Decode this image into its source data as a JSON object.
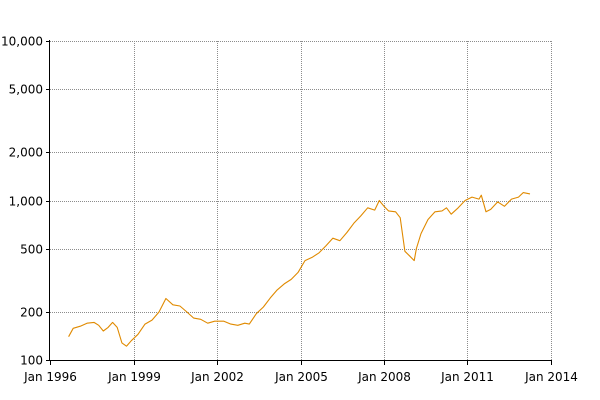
{
  "chart_data": {
    "type": "line",
    "title": "",
    "xlabel": "",
    "ylabel": "",
    "y_scale": "log",
    "grid": true,
    "legend": "none",
    "xlim": [
      "1996-01-01",
      "2014-01-01"
    ],
    "ylim": [
      100,
      10000
    ],
    "x_ticks": [
      {
        "value": "1996-01-01",
        "label": "Jan 1996"
      },
      {
        "value": "1999-01-01",
        "label": "Jan 1999"
      },
      {
        "value": "2002-01-01",
        "label": "Jan 2002"
      },
      {
        "value": "2005-01-01",
        "label": "Jan 2005"
      },
      {
        "value": "2008-01-01",
        "label": "Jan 2008"
      },
      {
        "value": "2011-01-01",
        "label": "Jan 2011"
      },
      {
        "value": "2014-01-01",
        "label": "Jan 2014"
      }
    ],
    "y_ticks": [
      {
        "value": 100,
        "label": "100"
      },
      {
        "value": 200,
        "label": "200"
      },
      {
        "value": 500,
        "label": "500"
      },
      {
        "value": 1000,
        "label": "1,000"
      },
      {
        "value": 2000,
        "label": "2,000"
      },
      {
        "value": 5000,
        "label": "5,000"
      },
      {
        "value": 10000,
        "label": "10,000"
      }
    ],
    "series": [
      {
        "color": "#e08a00",
        "points": [
          [
            "1996-09-01",
            140
          ],
          [
            "1996-11-01",
            158
          ],
          [
            "1997-02-01",
            163
          ],
          [
            "1997-05-01",
            170
          ],
          [
            "1997-08-01",
            172
          ],
          [
            "1997-10-01",
            165
          ],
          [
            "1997-12-01",
            152
          ],
          [
            "1998-02-01",
            160
          ],
          [
            "1998-04-01",
            172
          ],
          [
            "1998-06-01",
            160
          ],
          [
            "1998-08-01",
            128
          ],
          [
            "1998-10-01",
            122
          ],
          [
            "1998-12-01",
            132
          ],
          [
            "1999-03-01",
            145
          ],
          [
            "1999-06-01",
            168
          ],
          [
            "1999-09-01",
            178
          ],
          [
            "1999-12-01",
            200
          ],
          [
            "2000-03-01",
            243
          ],
          [
            "2000-06-01",
            222
          ],
          [
            "2000-09-01",
            218
          ],
          [
            "2000-12-01",
            200
          ],
          [
            "2001-03-01",
            183
          ],
          [
            "2001-06-01",
            180
          ],
          [
            "2001-09-01",
            170
          ],
          [
            "2001-12-01",
            175
          ],
          [
            "2002-04-01",
            175
          ],
          [
            "2002-07-01",
            168
          ],
          [
            "2002-10-01",
            165
          ],
          [
            "2003-01-01",
            170
          ],
          [
            "2003-03-01",
            168
          ],
          [
            "2003-06-01",
            195
          ],
          [
            "2003-09-01",
            215
          ],
          [
            "2003-12-01",
            245
          ],
          [
            "2004-03-01",
            275
          ],
          [
            "2004-06-01",
            300
          ],
          [
            "2004-09-01",
            320
          ],
          [
            "2004-12-01",
            355
          ],
          [
            "2005-03-01",
            420
          ],
          [
            "2005-06-01",
            440
          ],
          [
            "2005-09-01",
            470
          ],
          [
            "2005-12-01",
            520
          ],
          [
            "2006-03-01",
            580
          ],
          [
            "2006-06-01",
            560
          ],
          [
            "2006-09-01",
            630
          ],
          [
            "2006-12-01",
            720
          ],
          [
            "2007-03-01",
            800
          ],
          [
            "2007-06-01",
            900
          ],
          [
            "2007-09-01",
            870
          ],
          [
            "2007-11-01",
            1000
          ],
          [
            "2008-01-01",
            920
          ],
          [
            "2008-03-01",
            860
          ],
          [
            "2008-06-01",
            850
          ],
          [
            "2008-08-01",
            780
          ],
          [
            "2008-10-01",
            480
          ],
          [
            "2008-12-01",
            450
          ],
          [
            "2009-02-01",
            420
          ],
          [
            "2009-03-01",
            500
          ],
          [
            "2009-05-01",
            620
          ],
          [
            "2009-08-01",
            760
          ],
          [
            "2009-11-01",
            850
          ],
          [
            "2010-02-01",
            860
          ],
          [
            "2010-04-01",
            900
          ],
          [
            "2010-06-01",
            820
          ],
          [
            "2010-09-01",
            900
          ],
          [
            "2010-12-01",
            1000
          ],
          [
            "2011-03-01",
            1050
          ],
          [
            "2011-06-01",
            1020
          ],
          [
            "2011-07-01",
            1080
          ],
          [
            "2011-09-01",
            850
          ],
          [
            "2011-11-01",
            880
          ],
          [
            "2012-02-01",
            980
          ],
          [
            "2012-05-01",
            920
          ],
          [
            "2012-08-01",
            1020
          ],
          [
            "2012-11-01",
            1050
          ],
          [
            "2013-01-01",
            1120
          ],
          [
            "2013-04-01",
            1100
          ]
        ]
      }
    ]
  }
}
